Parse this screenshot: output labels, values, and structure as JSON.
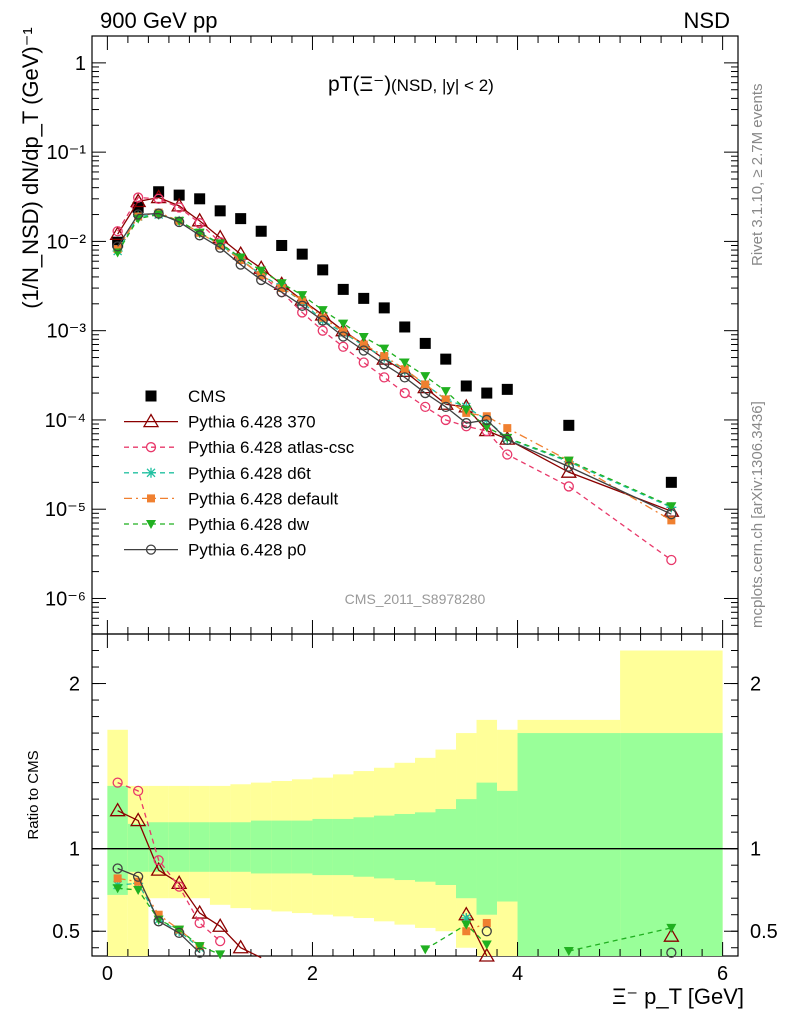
{
  "header": {
    "left": "900 GeV pp",
    "right": "NSD"
  },
  "side_labels": {
    "top": "Rivet 3.1.10, ≥ 2.7M events",
    "bottom": "mcplots.cern.ch [arXiv:1306.3436]"
  },
  "chart_data": [
    {
      "type": "scatter",
      "title_main": "pT(Ξ⁻)",
      "title_sub": "(NSD, |y| < 2)",
      "ylabel": "(1/N_NSD) dN/dp_T (GeV)⁻¹",
      "yscale": "log",
      "ylim": [
        4e-07,
        2
      ],
      "xlim": [
        -0.15,
        6.15
      ],
      "watermark": "CMS_2011_S8978280",
      "y_ticks": [
        {
          "v": 1,
          "label": "1"
        },
        {
          "v": 0.1,
          "label": "10⁻¹"
        },
        {
          "v": 0.01,
          "label": "10⁻²"
        },
        {
          "v": 0.001,
          "label": "10⁻³"
        },
        {
          "v": 0.0001,
          "label": "10⁻⁴"
        },
        {
          "v": 1e-05,
          "label": "10⁻⁵"
        },
        {
          "v": 1e-06,
          "label": "10⁻⁶"
        }
      ],
      "legend_position": "bottom-left",
      "series": [
        {
          "name": "CMS",
          "color": "#000000",
          "marker": "square",
          "line": "none",
          "x": [
            0.1,
            0.3,
            0.5,
            0.7,
            0.9,
            1.1,
            1.3,
            1.5,
            1.7,
            1.9,
            2.1,
            2.3,
            2.5,
            2.7,
            2.9,
            3.1,
            3.3,
            3.5,
            3.7,
            3.9,
            4.5,
            5.5
          ],
          "y": [
            0.0098,
            0.024,
            0.036,
            0.033,
            0.03,
            0.022,
            0.018,
            0.013,
            0.009,
            0.0072,
            0.0048,
            0.0029,
            0.0023,
            0.0018,
            0.0011,
            0.00072,
            0.00048,
            0.00024,
            0.0002,
            0.00022,
            8.7e-05,
            2e-05
          ]
        },
        {
          "name": "Pythia 6.428 370",
          "color": "#8b0000",
          "marker": "triangle-open",
          "line": "solid",
          "x": [
            0.1,
            0.3,
            0.5,
            0.7,
            0.9,
            1.1,
            1.3,
            1.5,
            1.7,
            1.9,
            2.1,
            2.3,
            2.5,
            2.7,
            2.9,
            3.1,
            3.3,
            3.5,
            3.7,
            3.9,
            4.5,
            5.5
          ],
          "y": [
            0.012,
            0.028,
            0.031,
            0.025,
            0.017,
            0.011,
            0.0072,
            0.005,
            0.0033,
            0.0022,
            0.0015,
            0.001,
            0.0007,
            0.00048,
            0.00035,
            0.00023,
            0.00015,
            0.00014,
            7.6e-05,
            6.1e-05,
            2.6e-05,
            9.5e-06
          ]
        },
        {
          "name": "Pythia 6.428 atlas-csc",
          "color": "#e8386a",
          "marker": "circle-open",
          "line": "dashed",
          "x": [
            0.1,
            0.3,
            0.5,
            0.7,
            0.9,
            1.1,
            1.3,
            1.5,
            1.7,
            1.9,
            2.1,
            2.3,
            2.5,
            2.7,
            2.9,
            3.1,
            3.3,
            3.5,
            3.7,
            3.9,
            4.5,
            5.5
          ],
          "y": [
            0.013,
            0.031,
            0.03,
            0.024,
            0.016,
            0.0098,
            0.0063,
            0.0042,
            0.0027,
            0.0016,
            0.001,
            0.00066,
            0.00044,
            0.0003,
            0.0002,
            0.00014,
            0.0001,
            8.5e-05,
            7.5e-05,
            4.1e-05,
            1.8e-05,
            2.7e-06
          ]
        },
        {
          "name": "Pythia 6.428 d6t",
          "color": "#20c0a0",
          "marker": "star",
          "line": "dashed",
          "x": [
            0.1,
            0.3,
            0.5,
            0.7,
            0.9,
            1.1,
            1.3,
            1.5,
            1.7,
            1.9,
            2.1,
            2.3,
            2.5,
            2.7,
            2.9,
            3.1,
            3.3,
            3.5,
            3.7,
            3.9,
            4.5,
            5.5
          ],
          "y": [
            0.0078,
            0.019,
            0.02,
            0.017,
            0.0125,
            0.0092,
            0.0063,
            0.0042,
            0.0031,
            0.0021,
            0.0013,
            0.00095,
            0.00068,
            0.0005,
            0.00036,
            0.00025,
            0.00017,
            0.00014,
            0.0001,
            6.2e-05,
            3.4e-05,
            1.05e-05
          ]
        },
        {
          "name": "Pythia 6.428 default",
          "color": "#f08030",
          "marker": "square-filled",
          "line": "dashdot",
          "x": [
            0.1,
            0.3,
            0.5,
            0.7,
            0.9,
            1.1,
            1.3,
            1.5,
            1.7,
            1.9,
            2.1,
            2.3,
            2.5,
            2.7,
            2.9,
            3.1,
            3.3,
            3.5,
            3.7,
            3.9,
            4.5,
            5.5
          ],
          "y": [
            0.0082,
            0.019,
            0.021,
            0.017,
            0.0125,
            0.009,
            0.0062,
            0.0042,
            0.003,
            0.0022,
            0.0014,
            0.00098,
            0.0007,
            0.00052,
            0.00037,
            0.00025,
            0.00017,
            0.00012,
            0.00011,
            8.1e-05,
            3.5e-05,
            7.5e-06
          ]
        },
        {
          "name": "Pythia 6.428 dw",
          "color": "#20b020",
          "marker": "triangle-down",
          "line": "dashed",
          "x": [
            0.1,
            0.3,
            0.5,
            0.7,
            0.9,
            1.1,
            1.3,
            1.5,
            1.7,
            1.9,
            2.1,
            2.3,
            2.5,
            2.7,
            2.9,
            3.1,
            3.3,
            3.5,
            3.7,
            3.9,
            4.5,
            5.5
          ],
          "y": [
            0.0075,
            0.018,
            0.02,
            0.017,
            0.0125,
            0.0095,
            0.0066,
            0.0047,
            0.0034,
            0.0025,
            0.0017,
            0.0012,
            0.00085,
            0.00063,
            0.00044,
            0.00031,
            0.00021,
            0.00013,
            8.3e-05,
            6.3e-05,
            3.5e-05,
            1.08e-05
          ]
        },
        {
          "name": "Pythia 6.428 p0",
          "color": "#404040",
          "marker": "circle-open",
          "line": "solid",
          "x": [
            0.1,
            0.3,
            0.5,
            0.7,
            0.9,
            1.1,
            1.3,
            1.5,
            1.7,
            1.9,
            2.1,
            2.3,
            2.5,
            2.7,
            2.9,
            3.1,
            3.3,
            3.5,
            3.7,
            3.9,
            4.5,
            5.5
          ],
          "y": [
            0.0088,
            0.02,
            0.0205,
            0.0165,
            0.0117,
            0.0085,
            0.0055,
            0.0037,
            0.0027,
            0.0019,
            0.0013,
            0.00086,
            0.0006,
            0.00042,
            0.0003,
            0.0002,
            0.00014,
            9.2e-05,
            0.0001,
            6e-05,
            3e-05,
            8.8e-06
          ]
        }
      ]
    },
    {
      "type": "scatter",
      "ylabel": "Ratio to CMS",
      "xlabel": "Ξ⁻ p_T [GeV]",
      "xlim": [
        -0.15,
        6.15
      ],
      "ylim": [
        0.35,
        2.3
      ],
      "reference_line": 1,
      "x_ticks": [
        0,
        2,
        4,
        6
      ],
      "y_ticks": [
        0.5,
        1,
        2
      ],
      "band_edges": [
        0,
        0.2,
        0.4,
        0.6,
        0.8,
        1.0,
        1.2,
        1.4,
        1.6,
        1.8,
        2.0,
        2.2,
        2.4,
        2.6,
        2.8,
        3.0,
        3.2,
        3.4,
        3.6,
        3.8,
        4.0,
        5.0,
        6.0
      ],
      "band_inner_hi": [
        1.38,
        1.15,
        1.16,
        1.16,
        1.16,
        1.16,
        1.16,
        1.17,
        1.17,
        1.17,
        1.18,
        1.18,
        1.19,
        1.2,
        1.21,
        1.22,
        1.24,
        1.3,
        1.4,
        1.35,
        1.7,
        1.7
      ],
      "band_inner_lo": [
        0.72,
        0.86,
        0.86,
        0.86,
        0.86,
        0.86,
        0.86,
        0.85,
        0.85,
        0.85,
        0.84,
        0.84,
        0.83,
        0.82,
        0.81,
        0.8,
        0.78,
        0.7,
        0.6,
        0.68,
        0.3,
        0.3
      ],
      "band_outer_hi": [
        1.72,
        1.38,
        1.38,
        1.38,
        1.38,
        1.38,
        1.39,
        1.4,
        1.41,
        1.42,
        1.43,
        1.45,
        1.47,
        1.49,
        1.52,
        1.55,
        1.6,
        1.7,
        1.78,
        1.72,
        1.78,
        2.2
      ],
      "band_outer_lo": [
        0.35,
        0.35,
        0.7,
        0.7,
        0.7,
        0.66,
        0.64,
        0.63,
        0.62,
        0.61,
        0.6,
        0.59,
        0.58,
        0.56,
        0.54,
        0.52,
        0.5,
        0.4,
        0.35,
        0.35,
        0.35,
        0.35
      ],
      "series": [
        {
          "name": "Pythia 6.428 370",
          "x": [
            0.1,
            0.3,
            0.5,
            0.7,
            0.9,
            1.1,
            1.3,
            1.5
          ],
          "y": [
            1.23,
            1.17,
            0.87,
            0.79,
            0.61,
            0.53,
            0.4,
            0.34
          ],
          "x2": [
            3.5,
            3.7
          ],
          "y2": [
            0.6,
            0.35
          ],
          "x3": [
            5.5
          ],
          "y3": [
            0.47
          ]
        },
        {
          "name": "Pythia 6.428 atlas-csc",
          "x": [
            0.1,
            0.3,
            0.5,
            0.7,
            0.9,
            1.1
          ],
          "y": [
            1.4,
            1.35,
            0.93,
            0.77,
            0.55,
            0.44
          ]
        },
        {
          "name": "Pythia 6.428 d6t",
          "x": [
            0.1,
            0.3,
            0.5,
            0.7,
            0.9
          ],
          "y": [
            0.78,
            0.79,
            0.57,
            0.5,
            0.4
          ],
          "x2": [
            3.5
          ],
          "y2": [
            0.58
          ]
        },
        {
          "name": "Pythia 6.428 default",
          "x": [
            0.1,
            0.3,
            0.5,
            0.7,
            0.9
          ],
          "y": [
            0.82,
            0.8,
            0.6,
            0.51,
            0.41
          ],
          "x2": [
            3.5,
            3.7
          ],
          "y2": [
            0.5,
            0.55
          ]
        },
        {
          "name": "Pythia 6.428 dw",
          "x": [
            0.1,
            0.3,
            0.5,
            0.7,
            0.9,
            1.1
          ],
          "y": [
            0.76,
            0.75,
            0.57,
            0.51,
            0.41,
            0.36
          ],
          "x2": [
            3.1,
            3.5,
            3.7
          ],
          "y2": [
            0.39,
            0.54,
            0.42
          ],
          "x3": [
            4.5,
            5.5
          ],
          "y3": [
            0.38,
            0.52
          ]
        },
        {
          "name": "Pythia 6.428 p0",
          "x": [
            0.1,
            0.3,
            0.5,
            0.7,
            0.9
          ],
          "y": [
            0.88,
            0.83,
            0.56,
            0.49,
            0.37
          ],
          "x2": [
            3.7
          ],
          "y2": [
            0.5
          ],
          "x3": [
            5.5
          ],
          "y3": [
            0.37
          ]
        }
      ]
    }
  ]
}
